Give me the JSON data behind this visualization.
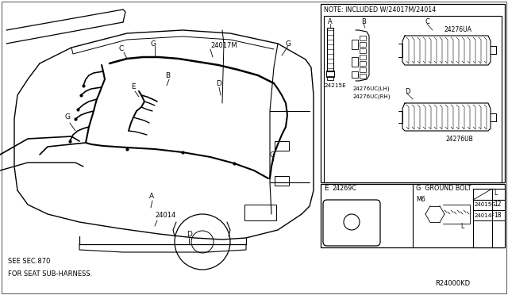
{
  "bg_color": "#ffffff",
  "line_color": "#000000",
  "note_text": "NOTE: INCLUDED W/24017M/24014",
  "footer_text1": "SEE SEC.870",
  "footer_text2": "FOR SEAT SUB-HARNESS.",
  "ground_bolt_text": "G  GROUND BOLT",
  "m6_text": "M6",
  "ref_code": "R24000KD",
  "fig_width": 6.4,
  "fig_height": 3.72,
  "dpi": 100
}
